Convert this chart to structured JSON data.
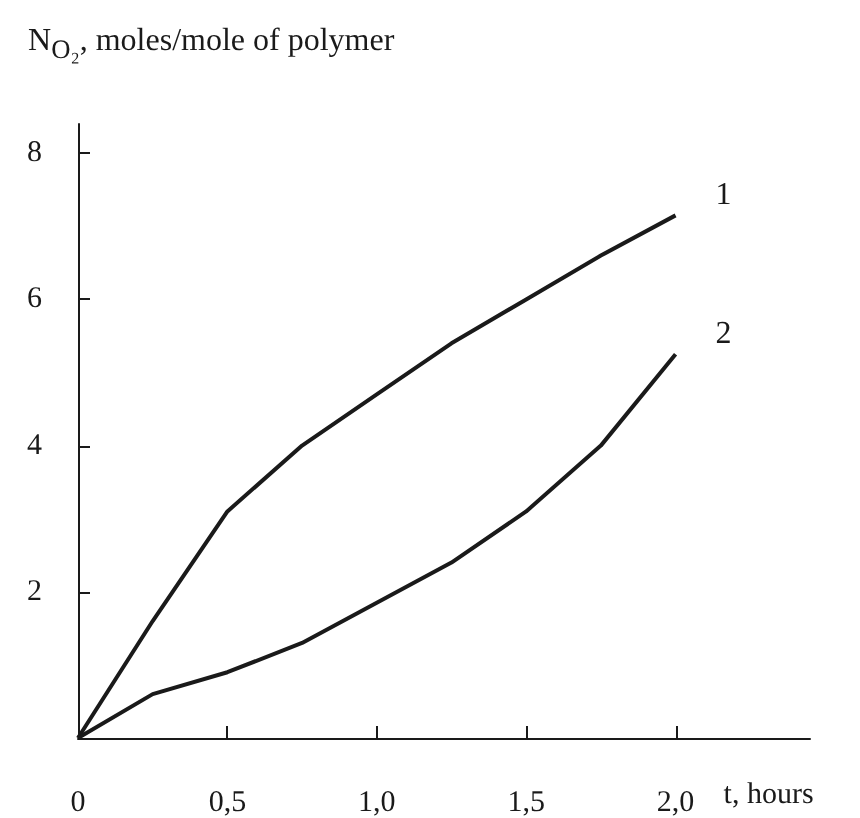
{
  "chart_data": {
    "type": "line",
    "xlabel": "t, hours",
    "ylabel": "N$_{O₂}$, moles/mole of polymer",
    "x": [
      0,
      0.25,
      0.5,
      0.75,
      1.0,
      1.25,
      1.5,
      1.75,
      2.0
    ],
    "series": [
      {
        "name": "1",
        "color": "#1a1a1a",
        "values": [
          0,
          1.6,
          3.1,
          4.0,
          4.7,
          5.4,
          6.0,
          6.6,
          7.15
        ]
      },
      {
        "name": "2",
        "color": "#1a1a1a",
        "values": [
          0,
          0.6,
          0.9,
          1.3,
          1.85,
          2.4,
          3.1,
          4.0,
          5.25
        ]
      }
    ],
    "xlim": [
      0,
      2.45
    ],
    "xticks": [
      0,
      {
        "value": 0.5,
        "label": "0,5"
      },
      {
        "value": 1.0,
        "label": "1,0"
      },
      {
        "value": 1.5,
        "label": "1,5"
      },
      {
        "value": 2.0,
        "label": "2,0"
      }
    ],
    "ylim": [
      0,
      8.4
    ],
    "yticks": [
      2,
      4,
      6,
      8
    ],
    "grid": false,
    "legend": false,
    "marker": "none",
    "line_style": "solid"
  }
}
